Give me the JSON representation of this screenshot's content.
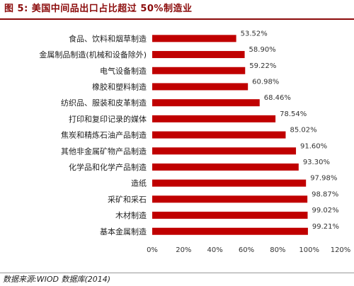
{
  "figure": {
    "title": "图 5:   美国中间品出口占比超过 50%制造业",
    "source": "数据来源:WIOD 数据库(2014)"
  },
  "colors": {
    "bar": "#c00000",
    "title": "#8b0a0a"
  },
  "chart_data": {
    "type": "bar",
    "orientation": "horizontal",
    "title": "",
    "xlabel": "",
    "ylabel": "",
    "xlim": [
      0,
      120
    ],
    "grid": false,
    "legend": "none",
    "categories": [
      "食品、饮料和烟草制造",
      "金属制品制造(机械和设备除外)",
      "电气设备制造",
      "橡胶和塑料制造",
      "纺织品、服装和皮革制造",
      "打印和复印记录的媒体",
      "焦炭和精炼石油产品制造",
      "其他非金属矿物产品制造",
      "化学品和化学产品制造",
      "造纸",
      "采矿和采石",
      "木材制造",
      "基本金属制造"
    ],
    "values": [
      53.52,
      58.9,
      59.22,
      60.98,
      68.46,
      78.54,
      85.02,
      91.6,
      93.3,
      97.98,
      98.87,
      99.02,
      99.21
    ],
    "value_labels": [
      "53.52%",
      "58.90%",
      "59.22%",
      "60.98%",
      "68.46%",
      "78.54%",
      "85.02%",
      "91.60%",
      "93.30%",
      "97.98%",
      "98.87%",
      "99.02%",
      "99.21%"
    ],
    "x_ticks": [
      "0%",
      "20%",
      "40%",
      "60%",
      "80%",
      "100%",
      "120%"
    ]
  }
}
